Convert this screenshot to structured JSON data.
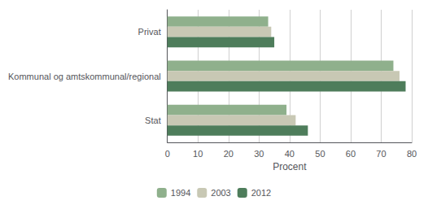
{
  "chart_data": {
    "type": "bar",
    "orientation": "horizontal",
    "categories": [
      "Privat",
      "Kommunal og amtskommunal/regional",
      "Stat"
    ],
    "series": [
      {
        "name": "1994",
        "color": "#8fb08c",
        "values": [
          33,
          74,
          39
        ]
      },
      {
        "name": "2003",
        "color": "#c8c8b4",
        "values": [
          34,
          76,
          42
        ]
      },
      {
        "name": "2012",
        "color": "#4e7d5b",
        "values": [
          35,
          78,
          46
        ]
      }
    ],
    "xlabel": "Procent",
    "xlim": [
      0,
      80
    ],
    "xticks": [
      0,
      10,
      20,
      30,
      40,
      50,
      60,
      70,
      80
    ],
    "grid": true,
    "legend": "bottom"
  }
}
